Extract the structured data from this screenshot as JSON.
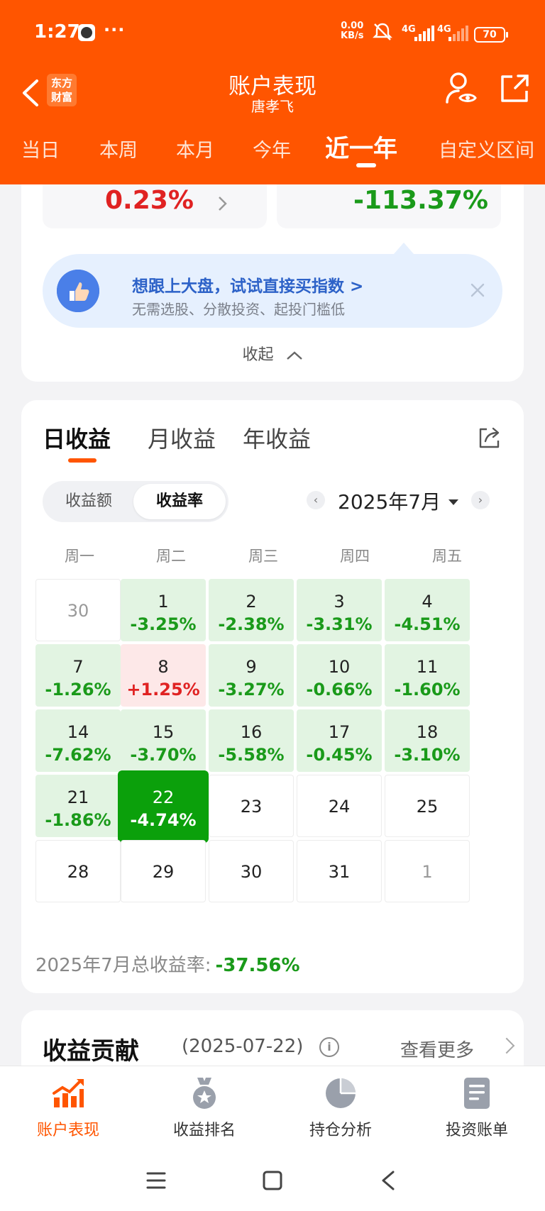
{
  "status_bar": {
    "time": "1:27",
    "dots": "···",
    "speed_value": "0.00",
    "speed_unit": "KB/s",
    "network1": "4G",
    "network2": "4G",
    "battery": "70"
  },
  "header": {
    "back_icon": "chevron-left-icon",
    "logo_line1": "东方",
    "logo_line2": "财富",
    "title": "账户表现",
    "subtitle": "唐孝飞",
    "user_icon": "user-eye-icon",
    "share_icon": "share-external-icon",
    "brand_color": "#ff5500"
  },
  "period_tabs": [
    {
      "label": "当日",
      "active": false
    },
    {
      "label": "本周",
      "active": false
    },
    {
      "label": "本月",
      "active": false
    },
    {
      "label": "今年",
      "active": false
    },
    {
      "label": "近一年",
      "active": true
    },
    {
      "label": "自定义区间",
      "active": false
    }
  ],
  "summary": {
    "left_value": "0.23%",
    "left_color": "#e02222",
    "right_value": "-113.37%",
    "right_color": "#1a9a1a"
  },
  "promo": {
    "title": "想跟上大盘，试试直接买指数 >",
    "subtitle": "无需选股、分散投资、起投门槛低",
    "icon": "thumbs-up-icon"
  },
  "collapse_label": "收起",
  "returns": {
    "tabs": [
      {
        "label": "日收益",
        "active": true
      },
      {
        "label": "月收益",
        "active": false
      },
      {
        "label": "年收益",
        "active": false
      }
    ],
    "segment": [
      {
        "label": "收益额",
        "active": false
      },
      {
        "label": "收益率",
        "active": true
      }
    ],
    "month": "2025年7月",
    "weekdays": [
      "周一",
      "周二",
      "周三",
      "周四",
      "周五"
    ],
    "days": [
      {
        "day": "30",
        "rate": "",
        "type": "empty",
        "faded": true
      },
      {
        "day": "1",
        "rate": "-3.25%",
        "type": "neg"
      },
      {
        "day": "2",
        "rate": "-2.38%",
        "type": "neg"
      },
      {
        "day": "3",
        "rate": "-3.31%",
        "type": "neg"
      },
      {
        "day": "4",
        "rate": "-4.51%",
        "type": "neg"
      },
      {
        "day": "7",
        "rate": "-1.26%",
        "type": "neg"
      },
      {
        "day": "8",
        "rate": "+1.25%",
        "type": "pos"
      },
      {
        "day": "9",
        "rate": "-3.27%",
        "type": "neg"
      },
      {
        "day": "10",
        "rate": "-0.66%",
        "type": "neg"
      },
      {
        "day": "11",
        "rate": "-1.60%",
        "type": "neg"
      },
      {
        "day": "14",
        "rate": "-7.62%",
        "type": "neg"
      },
      {
        "day": "15",
        "rate": "-3.70%",
        "type": "neg"
      },
      {
        "day": "16",
        "rate": "-5.58%",
        "type": "neg"
      },
      {
        "day": "17",
        "rate": "-0.45%",
        "type": "neg"
      },
      {
        "day": "18",
        "rate": "-3.10%",
        "type": "neg"
      },
      {
        "day": "21",
        "rate": "-1.86%",
        "type": "neg"
      },
      {
        "day": "22",
        "rate": "-4.74%",
        "type": "sel"
      },
      {
        "day": "23",
        "rate": "",
        "type": "empty"
      },
      {
        "day": "24",
        "rate": "",
        "type": "empty"
      },
      {
        "day": "25",
        "rate": "",
        "type": "empty"
      },
      {
        "day": "28",
        "rate": "",
        "type": "empty"
      },
      {
        "day": "29",
        "rate": "",
        "type": "empty"
      },
      {
        "day": "30",
        "rate": "",
        "type": "empty"
      },
      {
        "day": "31",
        "rate": "",
        "type": "empty"
      },
      {
        "day": "1",
        "rate": "",
        "type": "empty",
        "faded": true
      }
    ],
    "total_label": "2025年7月总收益率:",
    "total_value": "-37.56%"
  },
  "contribution": {
    "title": "收益贡献",
    "date": "(2025-07-22)",
    "more": "查看更多"
  },
  "bottom_nav": [
    {
      "label": "账户表现",
      "icon": "chart-trend-icon",
      "active": true
    },
    {
      "label": "收益排名",
      "icon": "medal-icon",
      "active": false
    },
    {
      "label": "持仓分析",
      "icon": "pie-chart-icon",
      "active": false
    },
    {
      "label": "投资账单",
      "icon": "bill-icon",
      "active": false
    }
  ]
}
